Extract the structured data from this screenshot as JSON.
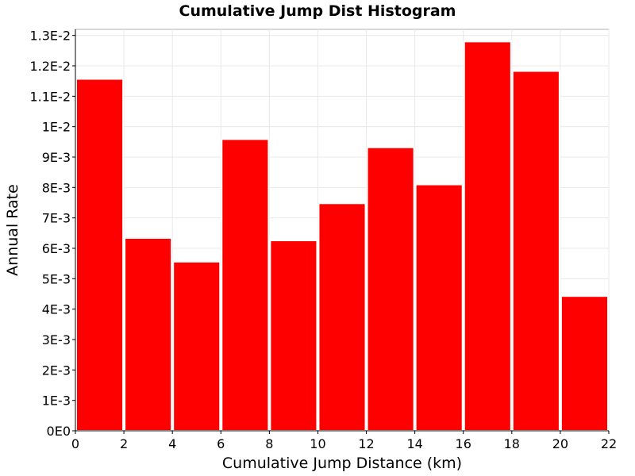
{
  "chart_data": {
    "type": "bar",
    "title": "Cumulative Jump Dist Histogram",
    "xlabel": "Cumulative Jump Distance (km)",
    "ylabel": "Annual Rate",
    "xlim": [
      0,
      22
    ],
    "ylim": [
      0,
      0.0132
    ],
    "x_ticks": [
      0,
      2,
      4,
      6,
      8,
      10,
      12,
      14,
      16,
      18,
      20,
      22
    ],
    "x_tick_labels": [
      "0",
      "2",
      "4",
      "6",
      "8",
      "10",
      "12",
      "14",
      "16",
      "18",
      "20",
      "22"
    ],
    "y_ticks": [
      0,
      0.001,
      0.002,
      0.003,
      0.004,
      0.005,
      0.006,
      0.007,
      0.008,
      0.009,
      0.01,
      0.011,
      0.012,
      0.013
    ],
    "y_tick_labels": [
      "0E0",
      "1E-3",
      "2E-3",
      "3E-3",
      "4E-3",
      "5E-3",
      "6E-3",
      "7E-3",
      "8E-3",
      "9E-3",
      "1E-2",
      "1.1E-2",
      "1.2E-2",
      "1.3E-2"
    ],
    "bin_width": 2,
    "bins": [
      {
        "start": 0,
        "end": 2,
        "value": 0.01157
      },
      {
        "start": 2,
        "end": 4,
        "value": 0.00634
      },
      {
        "start": 4,
        "end": 6,
        "value": 0.00556
      },
      {
        "start": 6,
        "end": 8,
        "value": 0.00959
      },
      {
        "start": 8,
        "end": 10,
        "value": 0.00626
      },
      {
        "start": 10,
        "end": 12,
        "value": 0.00748
      },
      {
        "start": 12,
        "end": 14,
        "value": 0.00932
      },
      {
        "start": 14,
        "end": 16,
        "value": 0.0081
      },
      {
        "start": 16,
        "end": 18,
        "value": 0.0128
      },
      {
        "start": 18,
        "end": 20,
        "value": 0.01183
      },
      {
        "start": 20,
        "end": 22,
        "value": 0.00443
      }
    ],
    "bar_color": "#ff0000",
    "grid": true
  }
}
